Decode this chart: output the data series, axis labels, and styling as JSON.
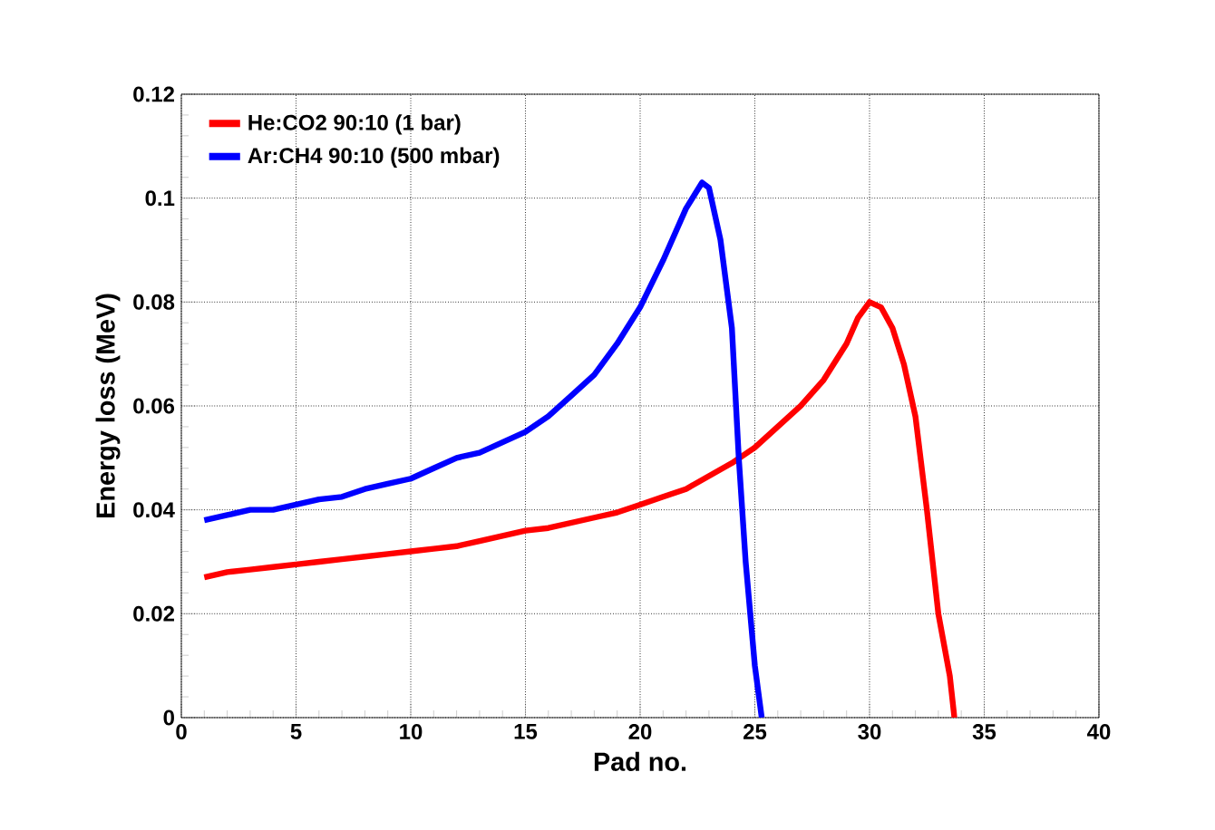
{
  "chart_data": {
    "type": "line",
    "xlabel": "Pad no.",
    "ylabel": "Energy loss (MeV)",
    "xlim": [
      0,
      40
    ],
    "ylim": [
      0,
      0.12
    ],
    "xticks": [
      0,
      5,
      10,
      15,
      20,
      25,
      30,
      35,
      40
    ],
    "yticks": [
      0,
      0.02,
      0.04,
      0.06,
      0.08,
      0.1,
      0.12
    ],
    "grid": true,
    "legend": "top left",
    "series": [
      {
        "name": "He:CO2 90:10 (1 bar)",
        "color": "#ff0000",
        "x": [
          1,
          2,
          3,
          4,
          5,
          6,
          7,
          8,
          9,
          10,
          11,
          12,
          13,
          14,
          15,
          16,
          17,
          18,
          19,
          20,
          21,
          22,
          23,
          24,
          25,
          26,
          27,
          28,
          29,
          29.5,
          30,
          30.5,
          31,
          31.5,
          32,
          32.5,
          33,
          33.5,
          33.7
        ],
        "values": [
          0.027,
          0.028,
          0.0285,
          0.029,
          0.0295,
          0.03,
          0.0305,
          0.031,
          0.0315,
          0.032,
          0.0325,
          0.033,
          0.034,
          0.035,
          0.036,
          0.0365,
          0.0375,
          0.0385,
          0.0395,
          0.041,
          0.0425,
          0.044,
          0.0465,
          0.049,
          0.052,
          0.056,
          0.06,
          0.065,
          0.072,
          0.077,
          0.08,
          0.079,
          0.075,
          0.068,
          0.058,
          0.04,
          0.02,
          0.008,
          0
        ]
      },
      {
        "name": "Ar:CH4 90:10 (500 mbar)",
        "color": "#0000ff",
        "x": [
          1,
          2,
          3,
          4,
          5,
          6,
          7,
          8,
          9,
          10,
          11,
          12,
          13,
          14,
          15,
          16,
          17,
          18,
          19,
          20,
          21,
          22,
          22.7,
          23,
          23.5,
          24,
          24.3,
          24.6,
          25,
          25.3
        ],
        "values": [
          0.038,
          0.039,
          0.04,
          0.04,
          0.041,
          0.042,
          0.0425,
          0.044,
          0.045,
          0.046,
          0.048,
          0.05,
          0.051,
          0.053,
          0.055,
          0.058,
          0.062,
          0.066,
          0.072,
          0.079,
          0.088,
          0.098,
          0.103,
          0.102,
          0.092,
          0.075,
          0.05,
          0.03,
          0.01,
          0
        ]
      }
    ]
  }
}
